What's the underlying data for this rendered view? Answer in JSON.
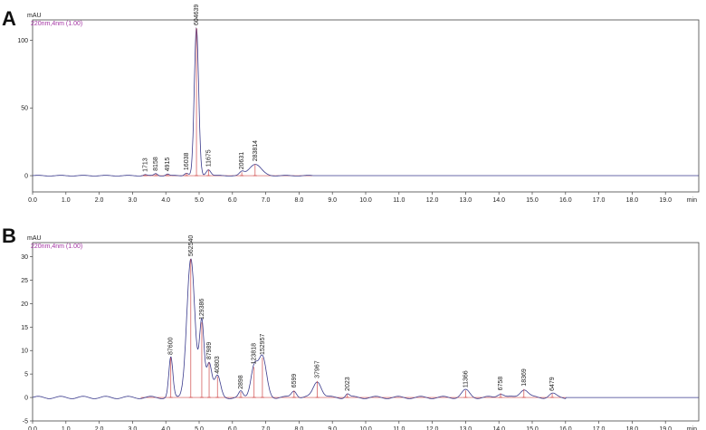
{
  "chart_data": [
    {
      "panel_label": "A",
      "type": "line",
      "y_unit": "mAU",
      "channel": "220nm,4nm (1.00)",
      "x_unit": "min",
      "xlim": [
        0,
        20
      ],
      "ylim": [
        -12,
        115
      ],
      "x_ticks": [
        "0.0",
        "1.0",
        "2.0",
        "3.0",
        "4.0",
        "5.0",
        "6.0",
        "7.0",
        "8.0",
        "9.0",
        "10.0",
        "11.0",
        "12.0",
        "13.0",
        "14.0",
        "15.0",
        "16.0",
        "17.0",
        "18.0",
        "19.0"
      ],
      "y_ticks": [
        100,
        50,
        25,
        0
      ],
      "y_ticks_all": [
        0,
        25,
        50,
        100
      ],
      "trace_end": 8.4,
      "peaks": [
        {
          "label": "1713",
          "rt": 3.38,
          "height": 0.8,
          "width": 0.05
        },
        {
          "label": "8158",
          "rt": 3.7,
          "height": 1.5,
          "width": 0.05
        },
        {
          "label": "4915",
          "rt": 4.05,
          "height": 1.2,
          "width": 0.05
        },
        {
          "label": "16038",
          "rt": 4.62,
          "height": 2.0,
          "width": 0.06
        },
        {
          "label": "604639",
          "rt": 4.92,
          "height": 109,
          "width": 0.065
        },
        {
          "label": "11675",
          "rt": 5.28,
          "height": 4.5,
          "width": 0.07
        },
        {
          "label": "20631",
          "rt": 6.28,
          "height": 2.5,
          "width": 0.07
        },
        {
          "label": "283814",
          "rt": 6.68,
          "height": 8.5,
          "width": 0.18
        }
      ]
    },
    {
      "panel_label": "B",
      "type": "line",
      "y_unit": "mAU",
      "channel": "220nm,4nm (1.00)",
      "x_unit": "min",
      "xlim": [
        0,
        20
      ],
      "ylim": [
        -5,
        33
      ],
      "x_ticks": [
        "0.0",
        "1.0",
        "2.0",
        "3.0",
        "4.0",
        "5.0",
        "6.0",
        "7.0",
        "8.0",
        "9.0",
        "10.0",
        "11.0",
        "12.0",
        "13.0",
        "14.0",
        "15.0",
        "16.0",
        "17.0",
        "18.0",
        "19.0"
      ],
      "y_ticks": [
        30,
        25,
        20,
        15,
        10,
        5,
        0,
        -5
      ],
      "trace_end": 16.0,
      "peaks": [
        {
          "label": "87600",
          "rt": 4.15,
          "height": 8.5,
          "width": 0.06
        },
        {
          "label": "562540",
          "rt": 4.75,
          "height": 29.5,
          "width": 0.12
        },
        {
          "label": "129386",
          "rt": 5.08,
          "height": 16.0,
          "width": 0.07
        },
        {
          "label": "87989",
          "rt": 5.3,
          "height": 7.5,
          "width": 0.08
        },
        {
          "label": "40803",
          "rt": 5.55,
          "height": 4.5,
          "width": 0.09
        },
        {
          "label": "2898",
          "rt": 6.25,
          "height": 1.2,
          "width": 0.06
        },
        {
          "label": "123818",
          "rt": 6.65,
          "height": 6.5,
          "width": 0.1
        },
        {
          "label": "152957",
          "rt": 6.9,
          "height": 8.5,
          "width": 0.12
        },
        {
          "label": "6599",
          "rt": 7.85,
          "height": 1.5,
          "width": 0.08
        },
        {
          "label": "37967",
          "rt": 8.55,
          "height": 3.5,
          "width": 0.12
        },
        {
          "label": "2023",
          "rt": 9.45,
          "height": 0.8,
          "width": 0.06
        },
        {
          "label": "11366",
          "rt": 13.0,
          "height": 1.5,
          "width": 0.12
        },
        {
          "label": "6758",
          "rt": 14.05,
          "height": 0.9,
          "width": 0.1
        },
        {
          "label": "18369",
          "rt": 14.75,
          "height": 1.8,
          "width": 0.12
        },
        {
          "label": "6479",
          "rt": 15.6,
          "height": 0.8,
          "width": 0.1
        }
      ]
    }
  ],
  "colors": {
    "trace": "#3a3a8c",
    "baseline": "#d04b4b",
    "channel_label": "#a333a3",
    "axis": "#444444",
    "grid": "#d8d8d8"
  }
}
